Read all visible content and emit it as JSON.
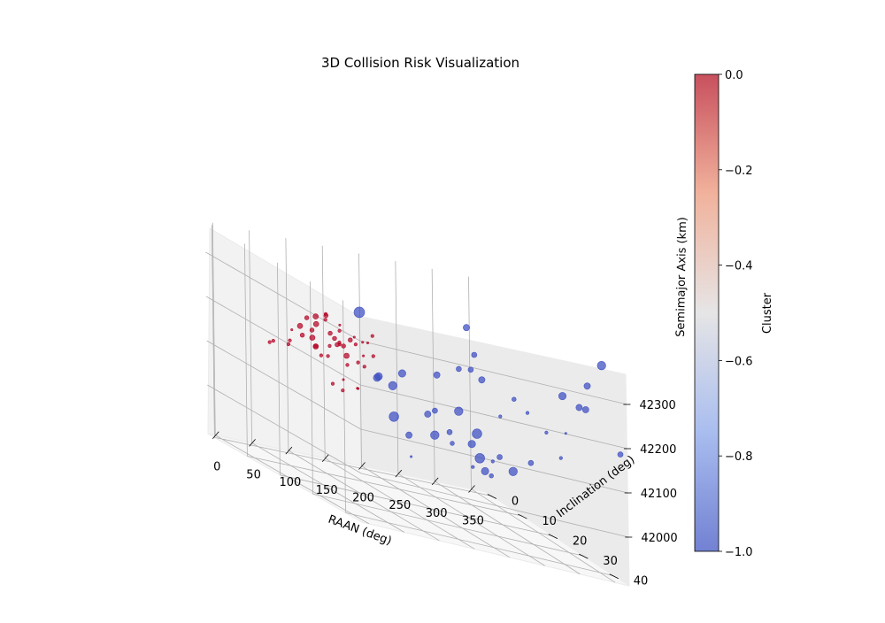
{
  "chart_data": {
    "type": "scatter3d",
    "title": "3D Collision Risk Visualization",
    "xlabel": "RAAN (deg)",
    "ylabel": "Inclination (deg)",
    "zlabel": "Semimajor Axis (km)",
    "colorbar_label": "Cluster",
    "xlim": [
      -10,
      370
    ],
    "ylim": [
      -2,
      45
    ],
    "zlim": [
      41890,
      42370
    ],
    "x_ticks": [
      "0",
      "50",
      "100",
      "150",
      "200",
      "250",
      "300",
      "350"
    ],
    "y_ticks": [
      "0",
      "10",
      "20",
      "30",
      "40"
    ],
    "z_ticks": [
      "42000",
      "42100",
      "42200",
      "42300"
    ],
    "colorbar_ticks": [
      "0.0",
      "−0.2",
      "−0.4",
      "−0.6",
      "−0.8",
      "−1.0"
    ],
    "colors": {
      "cluster_0": "#b40426",
      "cluster_-1": "#3b4cc0"
    },
    "series": [
      {
        "cluster": 0,
        "points": [
          [
            6,
            20,
            42200,
            3
          ],
          [
            18,
            18,
            42220,
            2
          ],
          [
            22,
            16,
            42180,
            3
          ],
          [
            24,
            24,
            42210,
            5
          ],
          [
            28,
            22,
            42240,
            4
          ],
          [
            30,
            20,
            42260,
            4
          ],
          [
            32,
            26,
            42200,
            3
          ],
          [
            34,
            17,
            42230,
            5
          ],
          [
            36,
            23,
            42190,
            3
          ],
          [
            38,
            21,
            42270,
            5
          ],
          [
            40,
            25,
            42250,
            4
          ],
          [
            42,
            19,
            42215,
            5
          ],
          [
            44,
            27,
            42235,
            3
          ],
          [
            46,
            15,
            42205,
            4
          ],
          [
            48,
            22,
            42280,
            4
          ],
          [
            50,
            28,
            42195,
            3
          ],
          [
            52,
            18,
            42245,
            5
          ],
          [
            54,
            24,
            42225,
            4
          ],
          [
            56,
            20,
            42265,
            3
          ],
          [
            58,
            26,
            42210,
            5
          ],
          [
            60,
            16,
            42190,
            4
          ],
          [
            62,
            23,
            42255,
            3
          ],
          [
            64,
            21,
            42230,
            4
          ],
          [
            66,
            19,
            42205,
            3
          ],
          [
            68,
            25,
            42245,
            4
          ],
          [
            70,
            17,
            42270,
            3
          ],
          [
            72,
            22,
            42220,
            4
          ],
          [
            74,
            28,
            42200,
            3
          ],
          [
            76,
            20,
            42260,
            2
          ],
          [
            80,
            24,
            42235,
            3
          ],
          [
            84,
            18,
            42215,
            3
          ],
          [
            88,
            26,
            42250,
            2
          ],
          [
            92,
            22,
            42190,
            3
          ],
          [
            96,
            20,
            42240,
            2
          ],
          [
            100,
            25,
            42220,
            3
          ],
          [
            104,
            21,
            42205,
            2
          ],
          [
            108,
            23,
            42260,
            3
          ],
          [
            112,
            19,
            42230,
            2
          ],
          [
            20,
            30,
            42150,
            3
          ],
          [
            26,
            32,
            42170,
            2
          ],
          [
            34,
            30,
            42140,
            3
          ],
          [
            42,
            33,
            42160,
            2
          ],
          [
            50,
            31,
            42155,
            2
          ],
          [
            10,
            14,
            42175,
            3
          ],
          [
            14,
            12,
            42165,
            3
          ]
        ]
      },
      {
        "cluster": -1,
        "points": [
          [
            60,
            35,
            42200,
            7
          ],
          [
            100,
            34,
            42220,
            7
          ],
          [
            140,
            36,
            42240,
            6
          ],
          [
            180,
            34,
            42260,
            5
          ],
          [
            196,
            33,
            42355,
            6
          ],
          [
            202,
            34,
            42300,
            5
          ],
          [
            208,
            35,
            42250,
            6
          ],
          [
            188,
            36,
            42270,
            5
          ],
          [
            150,
            33,
            42150,
            5
          ],
          [
            150,
            20,
            42080,
            9
          ],
          [
            165,
            6,
            42260,
            10
          ],
          [
            182,
            8,
            42130,
            7
          ],
          [
            210,
            6,
            42110,
            8
          ],
          [
            250,
            10,
            42030,
            8
          ],
          [
            232,
            12,
            42080,
            6
          ],
          [
            262,
            12,
            42050,
            5
          ],
          [
            274,
            10,
            42020,
            4
          ],
          [
            284,
            14,
            42040,
            7
          ],
          [
            300,
            12,
            42060,
            9
          ],
          [
            292,
            8,
            42090,
            8
          ],
          [
            314,
            16,
            42030,
            5
          ],
          [
            324,
            18,
            42010,
            8
          ],
          [
            312,
            10,
            42000,
            9
          ],
          [
            302,
            14,
            41985,
            7
          ],
          [
            318,
            20,
            42180,
            4
          ],
          [
            332,
            22,
            42050,
            5
          ],
          [
            345,
            18,
            42150,
            3
          ],
          [
            320,
            30,
            42150,
            3
          ],
          [
            340,
            30,
            42100,
            3
          ],
          [
            358,
            32,
            42230,
            6
          ],
          [
            356,
            40,
            42360,
            8
          ],
          [
            290,
            22,
            42140,
            3
          ],
          [
            270,
            24,
            42040,
            3
          ],
          [
            330,
            34,
            42170,
            2
          ],
          [
            240,
            4,
            42000,
            6
          ],
          [
            268,
            18,
            42000,
            3
          ],
          [
            285,
            20,
            41995,
            4
          ],
          [
            300,
            40,
            42270,
            7
          ],
          [
            344,
            38,
            42300,
            6
          ],
          [
            350,
            36,
            42240,
            6
          ],
          [
            364,
            44,
            42180,
            5
          ],
          [
            138,
            28,
            42020,
            2
          ]
        ]
      }
    ]
  }
}
